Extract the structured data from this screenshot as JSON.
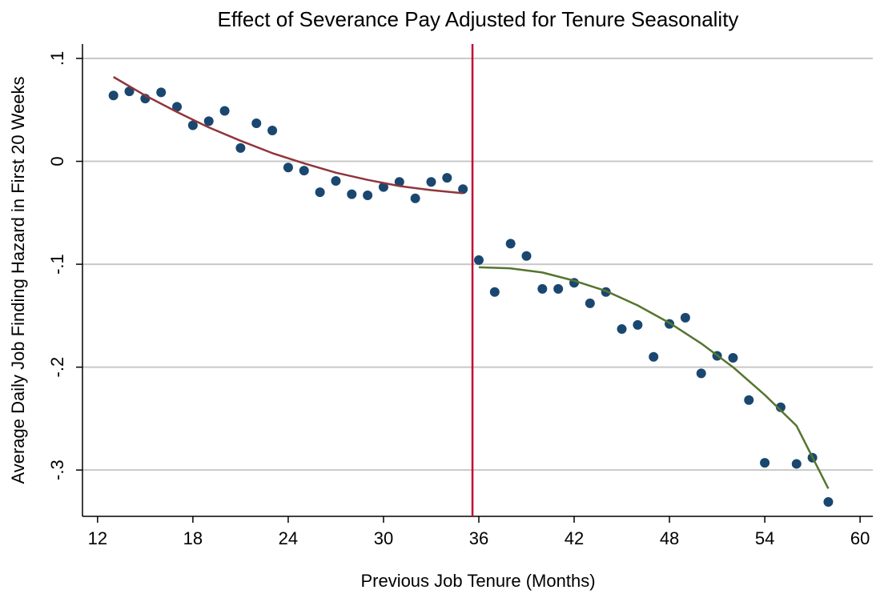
{
  "chart_data": {
    "type": "scatter",
    "title": "Effect of Severance Pay Adjusted for Tenure Seasonality",
    "x_label": "Previous Job Tenure (Months)",
    "y_label": "Average Daily Job Finding Hazard in First 20 Weeks",
    "xlim": [
      11.05,
      60.8
    ],
    "ylim": [
      -0.345,
      0.114
    ],
    "xticks": [
      12,
      18,
      24,
      30,
      36,
      42,
      48,
      54,
      60
    ],
    "yticks": [
      {
        "value": 0.1,
        "label": ".1"
      },
      0,
      {
        "value": -0.1,
        "label": "-.1"
      },
      {
        "value": -0.2,
        "label": "-.2"
      },
      {
        "value": -0.3,
        "label": "-.3"
      }
    ],
    "grid": true,
    "series": [
      {
        "type": "scatter",
        "color": "#1a476f",
        "x": [
          13,
          14,
          15,
          16,
          17,
          18,
          19,
          20,
          21,
          22,
          23,
          24,
          25,
          26,
          27,
          28,
          29,
          30,
          31,
          32,
          33,
          34,
          35,
          36,
          37,
          38,
          39,
          40,
          41,
          42,
          43,
          44,
          45,
          46,
          47,
          48,
          49,
          50,
          51,
          52,
          53,
          54,
          55,
          56,
          57,
          58
        ],
        "values": [
          0.064,
          0.068,
          0.061,
          0.067,
          0.053,
          0.035,
          0.039,
          0.049,
          0.013,
          0.037,
          0.03,
          -0.006,
          -0.009,
          -0.03,
          -0.019,
          -0.032,
          -0.033,
          -0.025,
          -0.02,
          -0.036,
          -0.02,
          -0.016,
          -0.027,
          -0.096,
          -0.127,
          -0.08,
          -0.092,
          -0.124,
          -0.124,
          -0.118,
          -0.138,
          -0.127,
          -0.163,
          -0.159,
          -0.19,
          -0.158,
          -0.152,
          -0.206,
          -0.189,
          -0.191,
          -0.232,
          -0.293,
          -0.239,
          -0.294,
          -0.288,
          -0.331
        ]
      },
      {
        "type": "line",
        "color": "#90353b",
        "x": [
          13,
          15,
          17,
          19,
          21,
          23,
          25,
          27,
          29,
          31,
          33,
          35
        ],
        "values": [
          0.082,
          0.064,
          0.048,
          0.033,
          0.02,
          0.008,
          -0.002,
          -0.011,
          -0.018,
          -0.024,
          -0.028,
          -0.031
        ]
      },
      {
        "type": "line",
        "color": "#55752f",
        "x": [
          36,
          38,
          40,
          42,
          44,
          46,
          48,
          50,
          52,
          54,
          56,
          58
        ],
        "values": [
          -0.103,
          -0.104,
          -0.108,
          -0.116,
          -0.126,
          -0.14,
          -0.157,
          -0.177,
          -0.2,
          -0.227,
          -0.257,
          -0.318
        ]
      }
    ],
    "vline": {
      "x": 35.6,
      "color": "#c10534"
    }
  }
}
